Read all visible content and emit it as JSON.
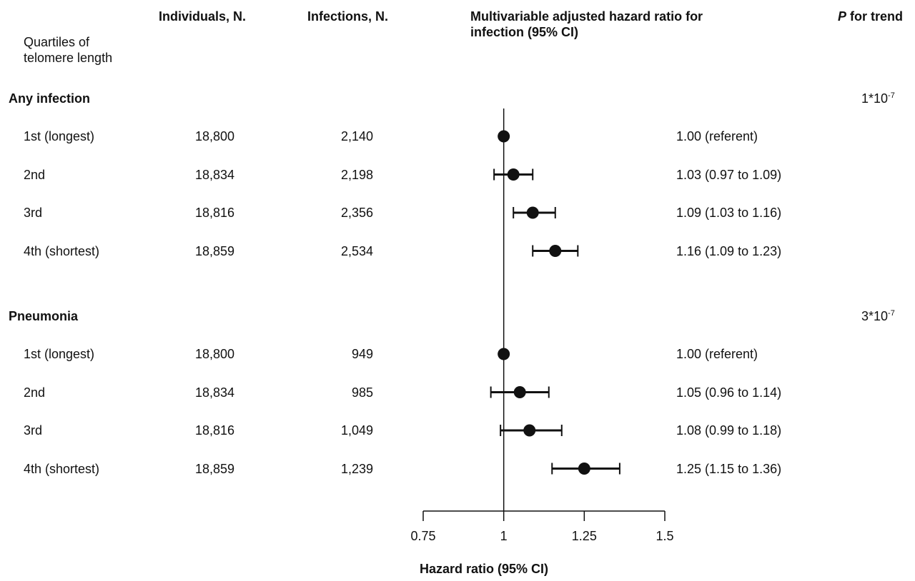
{
  "headers": {
    "row_label": "Quartiles of telomere length",
    "individuals": "Individuals, N.",
    "infections": "Infections, N.",
    "hr": "Multivariable adjusted hazard ratio for infection (95% CI)",
    "p_trend_italic": "P",
    "p_trend_rest": " for trend"
  },
  "chart_data": {
    "type": "forest",
    "xlabel": "Hazard ratio (95% CI)",
    "xlim": [
      0.75,
      1.5
    ],
    "xticks": [
      0.75,
      1,
      1.25,
      1.5
    ],
    "xtick_labels": [
      "0.75",
      "1",
      "1.25",
      "1.5"
    ],
    "reference_line": 1,
    "groups": [
      {
        "name": "Any infection",
        "p_trend_base": "1*10",
        "p_trend_exp": "-7",
        "rows": [
          {
            "label": "1st (longest)",
            "individuals": "18,800",
            "infections": "2,140",
            "hr": 1.0,
            "lo": null,
            "hi": null,
            "text": "1.00 (referent)"
          },
          {
            "label": "2nd",
            "individuals": "18,834",
            "infections": "2,198",
            "hr": 1.03,
            "lo": 0.97,
            "hi": 1.09,
            "text": "1.03 (0.97 to 1.09)"
          },
          {
            "label": "3rd",
            "individuals": "18,816",
            "infections": "2,356",
            "hr": 1.09,
            "lo": 1.03,
            "hi": 1.16,
            "text": "1.09 (1.03 to 1.16)"
          },
          {
            "label": "4th (shortest)",
            "individuals": "18,859",
            "infections": "2,534",
            "hr": 1.16,
            "lo": 1.09,
            "hi": 1.23,
            "text": "1.16 (1.09 to 1.23)"
          }
        ]
      },
      {
        "name": "Pneumonia",
        "p_trend_base": "3*10",
        "p_trend_exp": "-7",
        "rows": [
          {
            "label": "1st (longest)",
            "individuals": "18,800",
            "infections": "949",
            "hr": 1.0,
            "lo": null,
            "hi": null,
            "text": "1.00 (referent)"
          },
          {
            "label": "2nd",
            "individuals": "18,834",
            "infections": "985",
            "hr": 1.05,
            "lo": 0.96,
            "hi": 1.14,
            "text": "1.05 (0.96 to 1.14)"
          },
          {
            "label": "3rd",
            "individuals": "18,816",
            "infections": "1,049",
            "hr": 1.08,
            "lo": 0.99,
            "hi": 1.18,
            "text": "1.08 (0.99 to 1.18)"
          },
          {
            "label": "4th (shortest)",
            "individuals": "18,859",
            "infections": "1,239",
            "hr": 1.25,
            "lo": 1.15,
            "hi": 1.36,
            "text": "1.25 (1.15 to 1.36)"
          }
        ]
      }
    ]
  }
}
